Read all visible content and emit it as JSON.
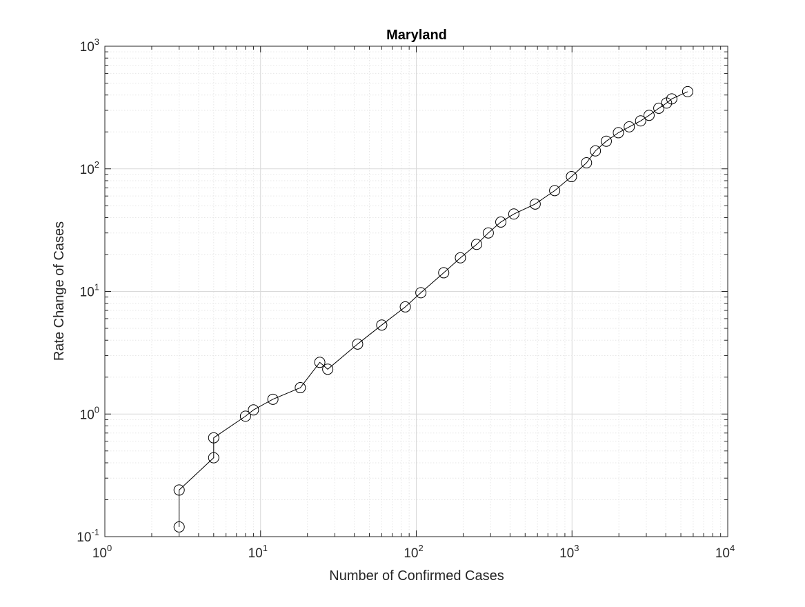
{
  "colors": {
    "line": "#000000",
    "marker_edge": "#000000",
    "axes": "#262626",
    "grid_major": "#d9d9d9",
    "grid_minor": "#e6e6e6",
    "background": "#ffffff"
  },
  "chart_data": {
    "type": "line",
    "title": "Maryland",
    "xlabel": "Number of Confirmed Cases",
    "ylabel": "Rate Change of Cases",
    "xscale": "log",
    "yscale": "log",
    "xlim": [
      1,
      10000
    ],
    "ylim": [
      0.1,
      1000
    ],
    "grid": "on",
    "minor_grid": "on",
    "marker": "circle-open",
    "x_ticks": [
      {
        "value": 1,
        "base": "10",
        "exp": "0"
      },
      {
        "value": 10,
        "base": "10",
        "exp": "1"
      },
      {
        "value": 100,
        "base": "10",
        "exp": "2"
      },
      {
        "value": 1000,
        "base": "10",
        "exp": "3"
      },
      {
        "value": 10000,
        "base": "10",
        "exp": "4"
      }
    ],
    "y_ticks": [
      {
        "value": 0.1,
        "base": "10",
        "exp": "-1"
      },
      {
        "value": 1,
        "base": "10",
        "exp": "0"
      },
      {
        "value": 10,
        "base": "10",
        "exp": "1"
      },
      {
        "value": 100,
        "base": "10",
        "exp": "2"
      },
      {
        "value": 1000,
        "base": "10",
        "exp": "3"
      }
    ],
    "series": [
      {
        "points": [
          [
            3,
            0.12
          ],
          [
            3,
            0.24
          ],
          [
            5,
            0.44
          ],
          [
            5,
            0.64
          ],
          [
            8,
            0.96
          ],
          [
            9,
            1.08
          ],
          [
            12,
            1.32
          ],
          [
            18,
            1.64
          ],
          [
            24,
            2.64
          ],
          [
            27,
            2.32
          ],
          [
            42,
            3.72
          ],
          [
            60,
            5.32
          ],
          [
            85,
            7.48
          ],
          [
            107,
            9.76
          ],
          [
            150,
            14.2
          ],
          [
            192,
            18.8
          ],
          [
            244,
            24.2
          ],
          [
            290,
            30
          ],
          [
            349,
            36.8
          ],
          [
            423,
            42.8
          ],
          [
            580,
            51.6
          ],
          [
            774,
            66.4
          ],
          [
            992,
            86.4
          ],
          [
            1239,
            112
          ],
          [
            1413,
            140
          ],
          [
            1660,
            168
          ],
          [
            1985,
            197
          ],
          [
            2331,
            220
          ],
          [
            2758,
            246
          ],
          [
            3125,
            273
          ],
          [
            3609,
            312
          ],
          [
            4045,
            344
          ],
          [
            4371,
            372
          ],
          [
            5529,
            426
          ]
        ]
      }
    ]
  }
}
